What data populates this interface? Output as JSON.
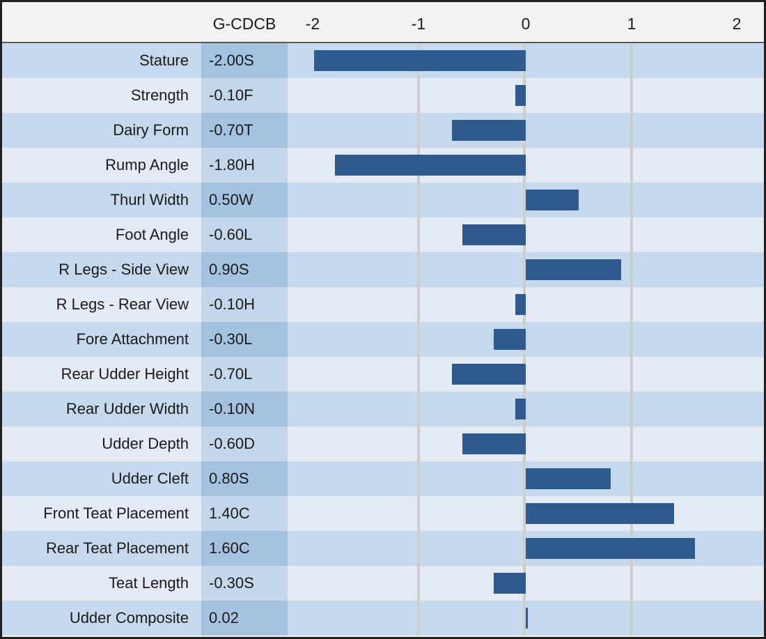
{
  "header": {
    "column_label": "G-CDCB",
    "axis_ticks": [
      "-2",
      "-1",
      "0",
      "1",
      "2"
    ]
  },
  "rows": [
    {
      "trait": "Stature",
      "value_label": "-2.00S",
      "value": -2.0
    },
    {
      "trait": "Strength",
      "value_label": "-0.10F",
      "value": -0.1
    },
    {
      "trait": "Dairy Form",
      "value_label": "-0.70T",
      "value": -0.7
    },
    {
      "trait": "Rump Angle",
      "value_label": "-1.80H",
      "value": -1.8
    },
    {
      "trait": "Thurl Width",
      "value_label": "0.50W",
      "value": 0.5
    },
    {
      "trait": "Foot Angle",
      "value_label": "-0.60L",
      "value": -0.6
    },
    {
      "trait": "R Legs - Side View",
      "value_label": "0.90S",
      "value": 0.9
    },
    {
      "trait": "R Legs - Rear View",
      "value_label": "-0.10H",
      "value": -0.1
    },
    {
      "trait": "Fore Attachment",
      "value_label": "-0.30L",
      "value": -0.3
    },
    {
      "trait": "Rear Udder Height",
      "value_label": "-0.70L",
      "value": -0.7
    },
    {
      "trait": "Rear Udder Width",
      "value_label": "-0.10N",
      "value": -0.1
    },
    {
      "trait": "Udder Depth",
      "value_label": "-0.60D",
      "value": -0.6
    },
    {
      "trait": "Udder Cleft",
      "value_label": "0.80S",
      "value": 0.8
    },
    {
      "trait": "Front Teat Placement",
      "value_label": "1.40C",
      "value": 1.4
    },
    {
      "trait": "Rear Teat Placement",
      "value_label": "1.60C",
      "value": 1.6
    },
    {
      "trait": "Teat Length",
      "value_label": "-0.30S",
      "value": -0.3
    },
    {
      "trait": "Udder Composite",
      "value_label": "0.02",
      "value": 0.02
    }
  ],
  "chart_data": {
    "type": "bar",
    "orientation": "horizontal",
    "title": "G-CDCB",
    "xlabel": "",
    "ylabel": "",
    "categories": [
      "Stature",
      "Strength",
      "Dairy Form",
      "Rump Angle",
      "Thurl Width",
      "Foot Angle",
      "R Legs - Side View",
      "R Legs - Rear View",
      "Fore Attachment",
      "Rear Udder Height",
      "Rear Udder Width",
      "Udder Depth",
      "Udder Cleft",
      "Front Teat Placement",
      "Rear Teat Placement",
      "Teat Length",
      "Udder Composite"
    ],
    "values": [
      -2.0,
      -0.1,
      -0.7,
      -1.8,
      0.5,
      -0.6,
      0.9,
      -0.1,
      -0.3,
      -0.7,
      -0.1,
      -0.6,
      0.8,
      1.4,
      1.6,
      -0.3,
      0.02
    ],
    "value_labels": [
      "-2.00S",
      "-0.10F",
      "-0.70T",
      "-1.80H",
      "0.50W",
      "-0.60L",
      "0.90S",
      "-0.10H",
      "-0.30L",
      "-0.70L",
      "-0.10N",
      "-0.60D",
      "0.80S",
      "1.40C",
      "1.60C",
      "-0.30S",
      "0.02"
    ],
    "xlim": [
      -2.25,
      2.25
    ],
    "x_tick_labels": [
      "-2",
      "-1",
      "0",
      "1",
      "2"
    ],
    "x_tick_values": [
      -2,
      -1,
      0,
      1,
      2
    ],
    "gridline_values": [
      -1,
      0,
      1
    ],
    "legend": null,
    "grid": "vertical-only"
  },
  "colors": {
    "bar": "#2f5a8d",
    "row_odd_bg": "#c6d8eb",
    "row_even_bg": "#e3eaf4",
    "value_cell_odd_bg": "#a4c2e0",
    "value_cell_even_bg": "#c4d6ea",
    "header_bg": "#f2f2f2",
    "gridline": "#cdcdcd",
    "frame_border": "#202020",
    "text": "#1a1a1a"
  }
}
